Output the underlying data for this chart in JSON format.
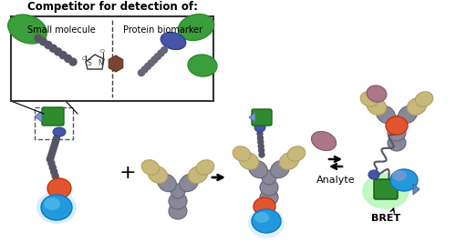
{
  "title": "Competitor for detection of:",
  "subtitle_left": "Small molecule",
  "subtitle_right": "Protein biomarker",
  "analyte_label": "Analyte",
  "bret_label": "BRET",
  "bg_color": "#ffffff",
  "colors": {
    "green_dark": "#2e8b2e",
    "green_med": "#3a9e3a",
    "gray_ab": "#888899",
    "gray_dark": "#555566",
    "tan": "#c8b87a",
    "orange": "#e05530",
    "blue_bright": "#2299dd",
    "blue_light": "#55bbee",
    "blue_glow": "#aaddff",
    "purple": "#4455aa",
    "mauve": "#aa7788",
    "brown": "#7a4433",
    "teal_arrow": "#7799bb",
    "black": "#111111"
  },
  "figsize": [
    5.0,
    2.66
  ],
  "dpi": 100
}
